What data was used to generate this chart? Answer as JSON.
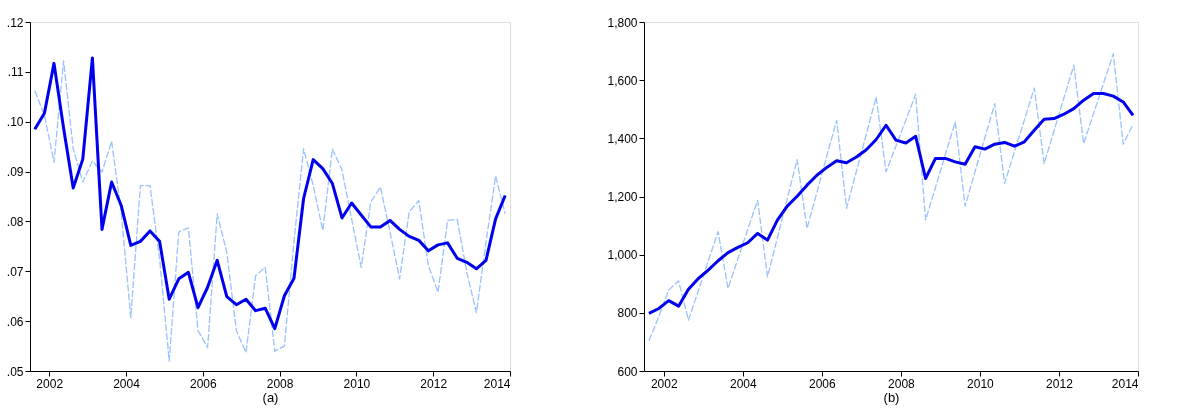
{
  "chart_data": [
    {
      "type": "line",
      "xlabel": "(a)",
      "x": [
        2001.625,
        2001.875,
        2002.125,
        2002.375,
        2002.625,
        2002.875,
        2003.125,
        2003.375,
        2003.625,
        2003.875,
        2004.125,
        2004.375,
        2004.625,
        2004.875,
        2005.125,
        2005.375,
        2005.625,
        2005.875,
        2006.125,
        2006.375,
        2006.625,
        2006.875,
        2007.125,
        2007.375,
        2007.625,
        2007.875,
        2008.125,
        2008.375,
        2008.625,
        2008.875,
        2009.125,
        2009.375,
        2009.625,
        2009.875,
        2010.125,
        2010.375,
        2010.625,
        2010.875,
        2011.125,
        2011.375,
        2011.625,
        2011.875,
        2012.125,
        2012.375,
        2012.625,
        2012.875,
        2013.125,
        2013.375,
        2013.625,
        2013.875
      ],
      "series": [
        {
          "color": "#99c2ff",
          "line_style": "dashed",
          "values": [
            0.1062,
            0.1013,
            0.0919,
            0.1122,
            0.0946,
            0.0879,
            0.0921,
            0.0899,
            0.0961,
            0.0819,
            0.0607,
            0.0872,
            0.0872,
            0.0725,
            0.052,
            0.0779,
            0.0787,
            0.0581,
            0.0547,
            0.0815,
            0.0738,
            0.0581,
            0.0537,
            0.0691,
            0.0708,
            0.054,
            0.055,
            0.076,
            0.0946,
            0.0872,
            0.0782,
            0.0945,
            0.0903,
            0.0805,
            0.0708,
            0.0839,
            0.0869,
            0.0779,
            0.0685,
            0.0819,
            0.0842,
            0.0711,
            0.0658,
            0.0802,
            0.0804,
            0.0698,
            0.0617,
            0.0758,
            0.0891,
            0.0815
          ]
        },
        {
          "color": "#0000ee",
          "line_style": "solid",
          "values": [
            0.0985,
            0.1017,
            0.1117,
            0.0987,
            0.0867,
            0.0925,
            0.1128,
            0.0784,
            0.0879,
            0.0832,
            0.0752,
            0.076,
            0.0781,
            0.076,
            0.0644,
            0.0685,
            0.0698,
            0.0627,
            0.0668,
            0.0722,
            0.0649,
            0.0633,
            0.0644,
            0.0621,
            0.0626,
            0.0585,
            0.0651,
            0.0686,
            0.0846,
            0.0924,
            0.0906,
            0.0876,
            0.0807,
            0.0837,
            0.0813,
            0.0789,
            0.0789,
            0.0802,
            0.0784,
            0.077,
            0.0762,
            0.0741,
            0.0753,
            0.0757,
            0.0726,
            0.0718,
            0.0705,
            0.0722,
            0.0805,
            0.0852
          ]
        }
      ],
      "xlim": [
        2001.5,
        2014
      ],
      "xticks": [
        2002,
        2004,
        2006,
        2008,
        2010,
        2012,
        2014
      ],
      "ylim": [
        0.05,
        0.12
      ],
      "yticks": [
        {
          "value": 0.05,
          "label": ".05"
        },
        {
          "value": 0.06,
          "label": ".06"
        },
        {
          "value": 0.07,
          "label": ".07"
        },
        {
          "value": 0.08,
          "label": ".08"
        },
        {
          "value": 0.09,
          "label": ".09"
        },
        {
          "value": 0.1,
          "label": ".10"
        },
        {
          "value": 0.11,
          "label": ".11"
        },
        {
          "value": 0.12,
          "label": ".12"
        }
      ],
      "grid": false
    },
    {
      "type": "line",
      "xlabel": "(b)",
      "x": [
        2001.625,
        2001.875,
        2002.125,
        2002.375,
        2002.625,
        2002.875,
        2003.125,
        2003.375,
        2003.625,
        2003.875,
        2004.125,
        2004.375,
        2004.625,
        2004.875,
        2005.125,
        2005.375,
        2005.625,
        2005.875,
        2006.125,
        2006.375,
        2006.625,
        2006.875,
        2007.125,
        2007.375,
        2007.625,
        2007.875,
        2008.125,
        2008.375,
        2008.625,
        2008.875,
        2009.125,
        2009.375,
        2009.625,
        2009.875,
        2010.125,
        2010.375,
        2010.625,
        2010.875,
        2011.125,
        2011.375,
        2011.625,
        2011.875,
        2012.125,
        2012.375,
        2012.625,
        2012.875,
        2013.125,
        2013.375,
        2013.625,
        2013.875
      ],
      "series": [
        {
          "color": "#99c2ff",
          "line_style": "dashed",
          "values": [
            704,
            787,
            878,
            910,
            775,
            876,
            978,
            1079,
            884,
            985,
            1087,
            1187,
            924,
            1058,
            1193,
            1327,
            1090,
            1214,
            1339,
            1462,
            1159,
            1287,
            1414,
            1542,
            1285,
            1374,
            1462,
            1552,
            1119,
            1231,
            1344,
            1456,
            1167,
            1285,
            1402,
            1519,
            1245,
            1355,
            1463,
            1573,
            1313,
            1426,
            1539,
            1651,
            1382,
            1485,
            1588,
            1691,
            1380,
            1448
          ]
        },
        {
          "color": "#0000ee",
          "line_style": "solid",
          "values": [
            798,
            815,
            842,
            823,
            881,
            918,
            947,
            979,
            1007,
            1025,
            1041,
            1073,
            1050,
            1119,
            1167,
            1201,
            1239,
            1273,
            1300,
            1323,
            1316,
            1336,
            1361,
            1396,
            1445,
            1394,
            1384,
            1407,
            1262,
            1331,
            1331,
            1319,
            1311,
            1371,
            1363,
            1380,
            1386,
            1373,
            1388,
            1428,
            1466,
            1468,
            1483,
            1502,
            1531,
            1554,
            1554,
            1545,
            1525,
            1479
          ]
        }
      ],
      "xlim": [
        2001.5,
        2014
      ],
      "xticks": [
        2002,
        2004,
        2006,
        2008,
        2010,
        2012,
        2014
      ],
      "ylim": [
        600,
        1800
      ],
      "yticks": [
        {
          "value": 600,
          "label": "600"
        },
        {
          "value": 800,
          "label": "800"
        },
        {
          "value": 1000,
          "label": "1,000"
        },
        {
          "value": 1200,
          "label": "1,200"
        },
        {
          "value": 1400,
          "label": "1,400"
        },
        {
          "value": 1600,
          "label": "1,600"
        },
        {
          "value": 1800,
          "label": "1,800"
        }
      ],
      "grid": false
    }
  ]
}
